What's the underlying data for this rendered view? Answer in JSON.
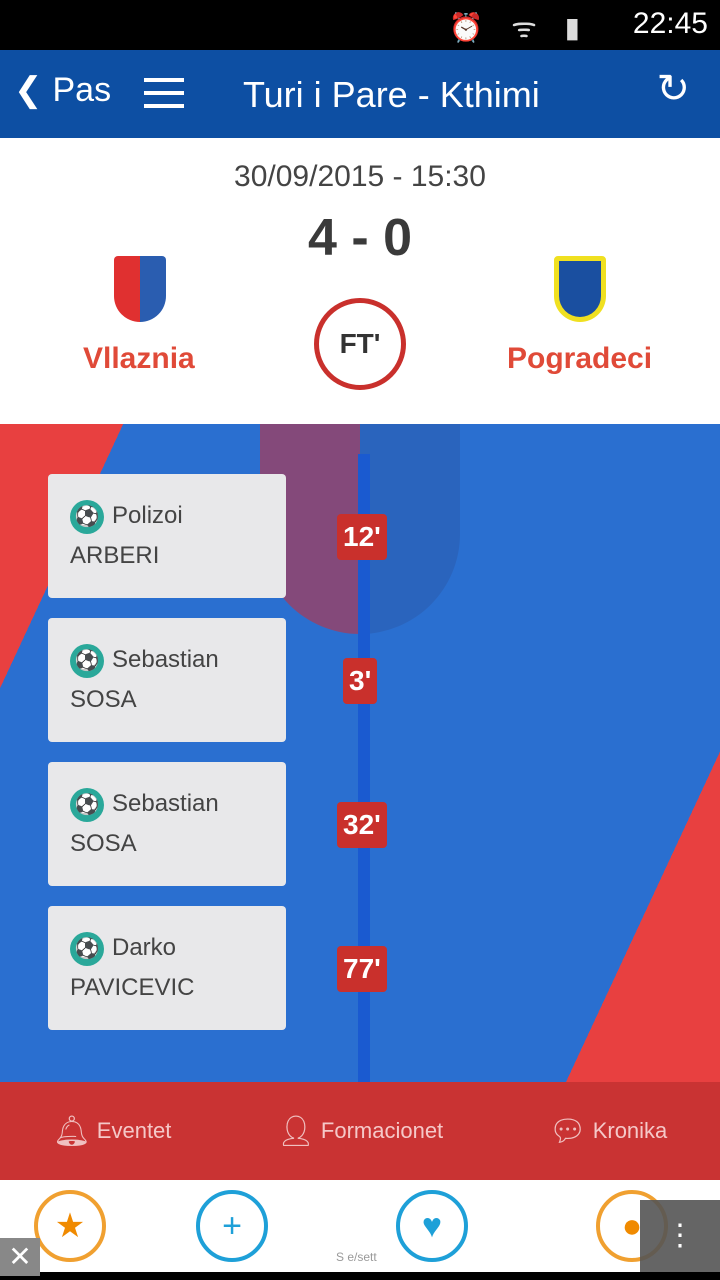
{
  "status_bar": {
    "time": "22:45",
    "icons": [
      "alarm-icon",
      "wifi-icon",
      "signal-icon",
      "battery-icon"
    ]
  },
  "app_bar": {
    "back_label": "Pas",
    "title": "Turi i Pare - Kthimi"
  },
  "match": {
    "datetime": "30/09/2015 - 15:30",
    "score": "4 - 0",
    "status": "FT'",
    "home_team": "Vllaznia",
    "away_team": "Pogradeci"
  },
  "events": [
    {
      "first": "Polizoi",
      "last": "ARBERI",
      "minute": "12'"
    },
    {
      "first": "Sebastian",
      "last": "SOSA",
      "minute": "3'"
    },
    {
      "first": "Sebastian",
      "last": "SOSA",
      "minute": "32'"
    },
    {
      "first": "Darko",
      "last": "PAVICEVIC",
      "minute": "77'"
    }
  ],
  "tabs": [
    {
      "label": "Eventet",
      "icon": "bell-icon"
    },
    {
      "label": "Formacionet",
      "icon": "person-icon"
    },
    {
      "label": "Kronika",
      "icon": "chat-icon"
    }
  ],
  "ad": {
    "text": "S e/sett"
  },
  "colors": {
    "app_bar": "#0d4fa3",
    "accent": "#c93333",
    "team": "#e04a38"
  }
}
